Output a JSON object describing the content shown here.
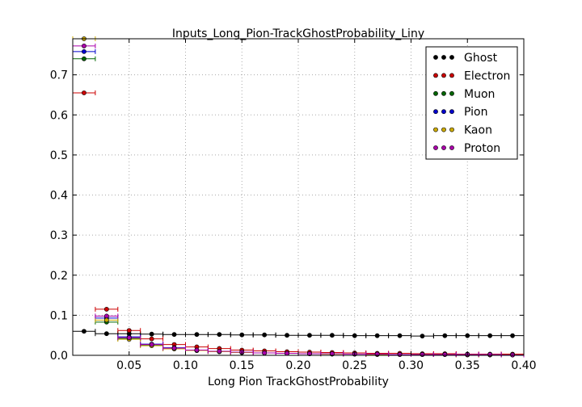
{
  "chart_data": {
    "type": "scatter",
    "title": "Inputs_Long_Pion-TrackGhostProbability_Liny",
    "xlabel": "Long Pion TrackGhostProbability",
    "ylabel": "",
    "xlim": [
      0.0,
      0.4
    ],
    "ylim": [
      0.0,
      0.79
    ],
    "grid": true,
    "legend_position": "top-right",
    "x_ticks": [
      0.05,
      0.1,
      0.15,
      0.2,
      0.25,
      0.3,
      0.35,
      0.4
    ],
    "x_tick_labels": [
      "0.05",
      "0.10",
      "0.15",
      "0.20",
      "0.25",
      "0.30",
      "0.35",
      "0.40"
    ],
    "y_ticks": [
      0.0,
      0.1,
      0.2,
      0.3,
      0.4,
      0.5,
      0.6,
      0.7
    ],
    "y_tick_labels": [
      "0.0",
      "0.1",
      "0.2",
      "0.3",
      "0.4",
      "0.5",
      "0.6",
      "0.7"
    ],
    "bin_centers": [
      0.01,
      0.03,
      0.05,
      0.07,
      0.09,
      0.11,
      0.13,
      0.15,
      0.17,
      0.19,
      0.21,
      0.23,
      0.25,
      0.27,
      0.29,
      0.31,
      0.33,
      0.35,
      0.37,
      0.39
    ],
    "bin_half_width": 0.01,
    "series": [
      {
        "name": "Ghost",
        "color": "#000000",
        "values": [
          0.06,
          0.054,
          0.054,
          0.053,
          0.052,
          0.052,
          0.052,
          0.051,
          0.051,
          0.05,
          0.05,
          0.05,
          0.049,
          0.049,
          0.049,
          0.048,
          0.049,
          0.049,
          0.049,
          0.049
        ]
      },
      {
        "name": "Electron",
        "color": "#cc0000",
        "values": [
          0.655,
          0.115,
          0.062,
          0.041,
          0.027,
          0.021,
          0.017,
          0.013,
          0.011,
          0.009,
          0.008,
          0.007,
          0.006,
          0.005,
          0.005,
          0.004,
          0.004,
          0.003,
          0.003,
          0.003
        ]
      },
      {
        "name": "Muon",
        "color": "#006600",
        "values": [
          0.74,
          0.083,
          0.042,
          0.026,
          0.017,
          0.012,
          0.009,
          0.007,
          0.006,
          0.005,
          0.004,
          0.003,
          0.003,
          0.002,
          0.002,
          0.002,
          0.002,
          0.001,
          0.001,
          0.001
        ]
      },
      {
        "name": "Pion",
        "color": "#0000cc",
        "values": [
          0.758,
          0.093,
          0.046,
          0.028,
          0.019,
          0.013,
          0.01,
          0.008,
          0.006,
          0.005,
          0.004,
          0.004,
          0.003,
          0.003,
          0.002,
          0.002,
          0.002,
          0.002,
          0.001,
          0.001
        ]
      },
      {
        "name": "Kaon",
        "color": "#ccaa00",
        "values": [
          0.79,
          0.088,
          0.04,
          0.024,
          0.016,
          0.012,
          0.009,
          0.007,
          0.006,
          0.005,
          0.004,
          0.003,
          0.003,
          0.002,
          0.002,
          0.002,
          0.002,
          0.001,
          0.001,
          0.001
        ]
      },
      {
        "name": "Proton",
        "color": "#aa00aa",
        "values": [
          0.772,
          0.098,
          0.044,
          0.027,
          0.018,
          0.013,
          0.01,
          0.008,
          0.006,
          0.005,
          0.004,
          0.004,
          0.003,
          0.003,
          0.002,
          0.002,
          0.002,
          0.002,
          0.002,
          0.001
        ]
      }
    ]
  }
}
